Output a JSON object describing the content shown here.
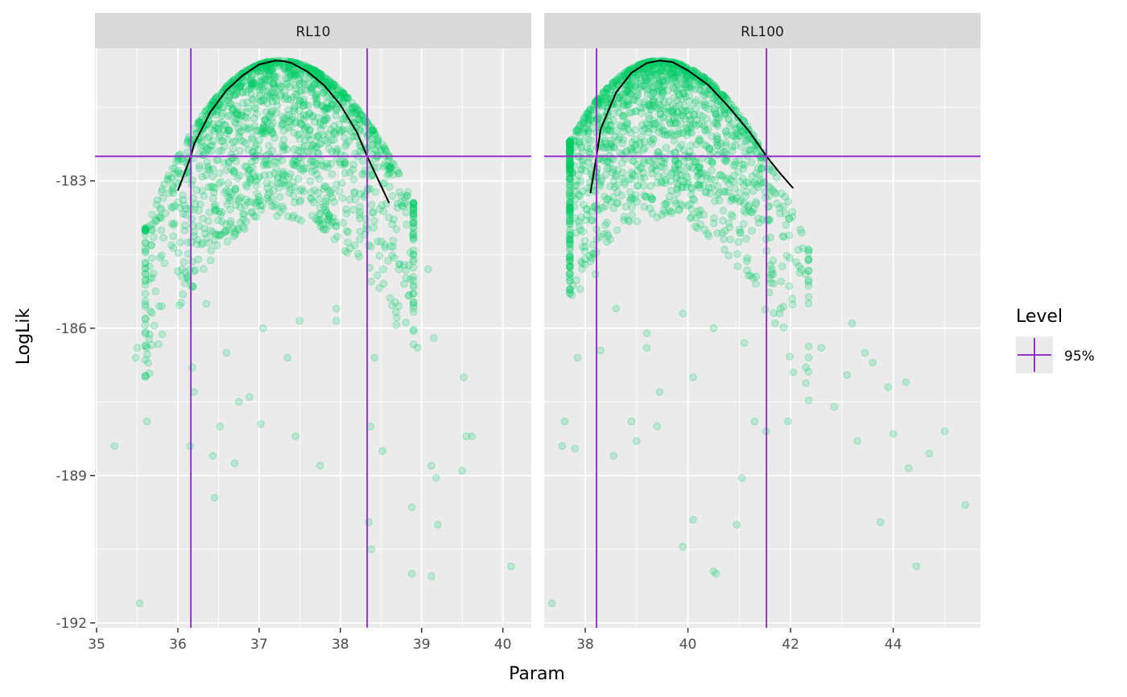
{
  "chart_data": {
    "type": "scatter",
    "xlabel": "Param",
    "ylabel": "LogLik",
    "grid": true,
    "legend": {
      "position": "right",
      "title": "Level",
      "entries": [
        {
          "label": "95%",
          "color": "#9932CC"
        }
      ]
    },
    "colors": {
      "points": "#00CC66",
      "profile_line": "#000000",
      "ci_lines": "#9932CC",
      "panel_bg": "#EBEBEB",
      "grid": "#FFFFFF",
      "strip_bg": "#D9D9D9"
    },
    "ylim": [
      -192.1,
      -180.3
    ],
    "y_ticks": [
      {
        "value": -183,
        "label": "-183"
      },
      {
        "value": -186,
        "label": "-186"
      },
      {
        "value": -189,
        "label": "-189"
      },
      {
        "value": -192,
        "label": "-192"
      }
    ],
    "panels": [
      {
        "label": "RL10",
        "xlim": [
          34.98,
          40.35
        ],
        "x_ticks": [
          {
            "value": 35,
            "label": "35"
          },
          {
            "value": 36,
            "label": "36"
          },
          {
            "value": 37,
            "label": "37"
          },
          {
            "value": 38,
            "label": "38"
          },
          {
            "value": 39,
            "label": "39"
          },
          {
            "value": 40,
            "label": "40"
          }
        ],
        "ci_lower": 36.16,
        "ci_upper": 38.33,
        "ci_loglik": -182.5,
        "mle": 37.25,
        "max_loglik": -180.55,
        "profile_line": {
          "x": [
            36.0,
            36.16,
            36.2,
            36.4,
            36.6,
            36.8,
            37.0,
            37.2,
            37.3,
            37.4,
            37.6,
            37.8,
            38.0,
            38.2,
            38.33,
            38.45,
            38.6
          ],
          "y": [
            -183.2,
            -182.5,
            -182.25,
            -181.6,
            -181.15,
            -180.85,
            -180.63,
            -180.55,
            -180.56,
            -180.6,
            -180.78,
            -181.05,
            -181.45,
            -182.0,
            -182.5,
            -182.92,
            -183.45
          ]
        },
        "scatter_sample": {
          "x": [
            35.22,
            35.53,
            35.62,
            35.5,
            35.48,
            35.62,
            35.71,
            35.8,
            36.15,
            36.18,
            36.43,
            36.45,
            36.52,
            36.7,
            36.75,
            37.02,
            37.45,
            37.75,
            38.35,
            38.37,
            38.38,
            38.52,
            38.88,
            39.12,
            39.18,
            39.12,
            39.2,
            39.5,
            39.55,
            39.62,
            40.1,
            38.88,
            39.15,
            39.52,
            38.95,
            38.42,
            37.95,
            37.35,
            37.05,
            36.88,
            36.6,
            36.35,
            36.05,
            36.2,
            36.25,
            37.5,
            37.95,
            38.55,
            38.72,
            39.08
          ],
          "y": [
            -188.4,
            -191.6,
            -187.9,
            -186.4,
            -186.6,
            -186.4,
            -185.95,
            -185.55,
            -188.4,
            -186.8,
            -188.6,
            -189.45,
            -188.0,
            -188.75,
            -187.5,
            -187.95,
            -188.2,
            -188.8,
            -189.95,
            -188.0,
            -190.5,
            -188.5,
            -191.0,
            -188.8,
            -189.05,
            -191.05,
            -190.0,
            -188.9,
            -188.2,
            -188.2,
            -190.85,
            -189.65,
            -186.2,
            -187.0,
            -186.4,
            -186.6,
            -185.85,
            -186.6,
            -186.0,
            -187.4,
            -186.5,
            -185.5,
            -184.8,
            -187.3,
            -184.6,
            -185.85,
            -185.6,
            -184.3,
            -185.55,
            -184.8
          ]
        }
      },
      {
        "label": "RL100",
        "xlim": [
          37.2,
          45.7
        ],
        "x_ticks": [
          {
            "value": 38,
            "label": "38"
          },
          {
            "value": 40,
            "label": "40"
          },
          {
            "value": 42,
            "label": "42"
          },
          {
            "value": 44,
            "label": "44"
          }
        ],
        "ci_lower": 38.22,
        "ci_upper": 41.53,
        "ci_loglik": -182.5,
        "mle": 39.45,
        "max_loglik": -180.55,
        "profile_line": {
          "x": [
            38.1,
            38.22,
            38.3,
            38.6,
            38.9,
            39.2,
            39.45,
            39.7,
            40.0,
            40.4,
            40.8,
            41.2,
            41.53,
            41.8,
            42.05
          ],
          "y": [
            -183.25,
            -182.5,
            -181.95,
            -181.2,
            -180.8,
            -180.6,
            -180.55,
            -180.58,
            -180.75,
            -181.05,
            -181.5,
            -182.0,
            -182.5,
            -182.85,
            -183.15
          ]
        },
        "scatter_sample": {
          "x": [
            37.35,
            37.55,
            37.6,
            37.8,
            37.85,
            38.3,
            38.55,
            38.9,
            39.0,
            39.2,
            39.4,
            39.45,
            39.9,
            40.1,
            40.5,
            40.55,
            40.95,
            41.05,
            41.3,
            41.52,
            41.95,
            42.05,
            42.3,
            42.85,
            43.3,
            43.45,
            43.75,
            43.9,
            44.3,
            44.45,
            44.7,
            45.0,
            45.4,
            44.0,
            43.6,
            43.1,
            42.6,
            41.7,
            41.1,
            40.5,
            39.9,
            39.2,
            38.6,
            38.2,
            37.9,
            37.7,
            38.0,
            40.1,
            43.2,
            44.25
          ],
          "y": [
            -191.6,
            -188.4,
            -187.9,
            -188.45,
            -186.6,
            -186.45,
            -188.6,
            -187.9,
            -188.3,
            -186.4,
            -188.0,
            -187.3,
            -190.45,
            -189.9,
            -190.95,
            -191.0,
            -190.0,
            -189.05,
            -187.9,
            -188.1,
            -187.9,
            -186.9,
            -186.8,
            -187.6,
            -188.3,
            -186.5,
            -189.95,
            -187.2,
            -188.85,
            -190.85,
            -188.55,
            -188.1,
            -189.6,
            -188.15,
            -186.7,
            -186.95,
            -186.4,
            -185.9,
            -186.3,
            -186.0,
            -185.7,
            -186.1,
            -185.6,
            -184.9,
            -185.2,
            -184.3,
            -184.7,
            -187.0,
            -185.9,
            -187.1
          ]
        }
      }
    ]
  }
}
